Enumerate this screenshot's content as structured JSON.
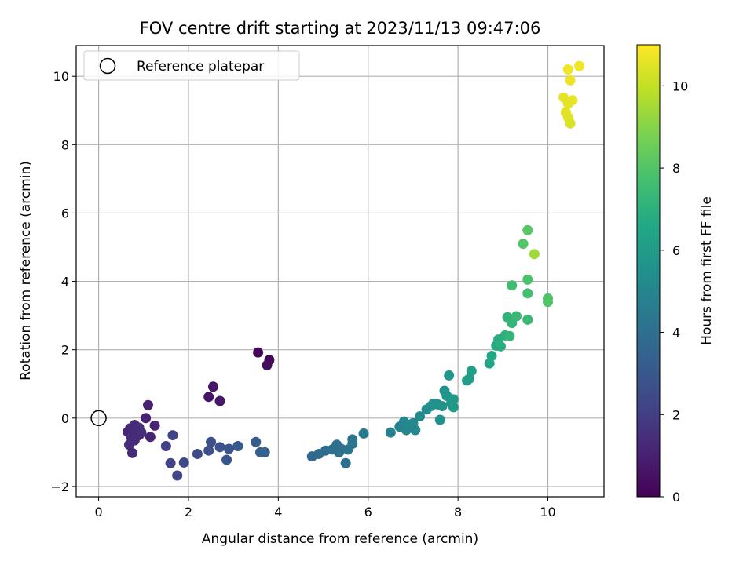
{
  "chart_data": {
    "type": "scatter",
    "title": "FOV centre drift starting at 2023/11/13 09:47:06",
    "xlabel": "Angular distance from reference (arcmin)",
    "ylabel": "Rotation from reference (arcmin)",
    "xlim": [
      -0.5,
      11.25
    ],
    "ylim": [
      -2.3,
      10.9
    ],
    "xticks": [
      0,
      2,
      4,
      6,
      8,
      10
    ],
    "yticks": [
      -2,
      0,
      2,
      4,
      6,
      8,
      10
    ],
    "grid": true,
    "legend": {
      "position": "top-left",
      "entries": [
        "Reference platepar"
      ]
    },
    "reference_point": {
      "x": 0,
      "y": 0,
      "label": "Reference platepar"
    },
    "colorbar": {
      "label": "Hours from first FF file",
      "range": [
        0,
        11
      ],
      "ticks": [
        0,
        2,
        4,
        6,
        8,
        10
      ],
      "colormap": "viridis"
    },
    "points": [
      [
        3.55,
        1.92,
        0.15
      ],
      [
        3.75,
        1.55,
        0.3
      ],
      [
        3.8,
        1.7,
        0.25
      ],
      [
        2.45,
        0.62,
        0.6
      ],
      [
        2.55,
        0.92,
        0.65
      ],
      [
        2.7,
        0.5,
        0.7
      ],
      [
        1.1,
        0.38,
        1.0
      ],
      [
        1.05,
        0.0,
        1.05
      ],
      [
        1.25,
        -0.22,
        1.1
      ],
      [
        1.15,
        -0.55,
        1.1
      ],
      [
        0.65,
        -0.4,
        1.2
      ],
      [
        0.7,
        -0.3,
        1.25
      ],
      [
        0.75,
        -0.45,
        1.25
      ],
      [
        0.8,
        -0.2,
        1.3
      ],
      [
        0.85,
        -0.35,
        1.3
      ],
      [
        0.9,
        -0.5,
        1.3
      ],
      [
        0.72,
        -0.55,
        1.35
      ],
      [
        0.8,
        -0.65,
        1.35
      ],
      [
        0.68,
        -0.78,
        1.35
      ],
      [
        0.75,
        -1.02,
        1.4
      ],
      [
        0.9,
        -0.28,
        1.4
      ],
      [
        0.95,
        -0.42,
        1.45
      ],
      [
        1.5,
        -0.82,
        2.1
      ],
      [
        1.6,
        -1.32,
        2.2
      ],
      [
        1.65,
        -0.5,
        2.2
      ],
      [
        1.75,
        -1.68,
        2.3
      ],
      [
        1.9,
        -1.3,
        2.4
      ],
      [
        2.2,
        -1.05,
        2.5
      ],
      [
        2.45,
        -0.95,
        2.6
      ],
      [
        2.5,
        -0.7,
        2.7
      ],
      [
        2.7,
        -0.85,
        2.8
      ],
      [
        2.85,
        -1.22,
        2.9
      ],
      [
        2.9,
        -0.9,
        2.9
      ],
      [
        3.1,
        -0.82,
        3.0
      ],
      [
        3.5,
        -0.7,
        3.2
      ],
      [
        3.6,
        -1.0,
        3.3
      ],
      [
        3.7,
        -1.0,
        3.4
      ],
      [
        4.75,
        -1.12,
        3.7
      ],
      [
        4.9,
        -1.05,
        3.8
      ],
      [
        5.05,
        -0.95,
        3.9
      ],
      [
        5.2,
        -0.92,
        4.0
      ],
      [
        5.3,
        -0.78,
        4.0
      ],
      [
        5.35,
        -1.0,
        4.05
      ],
      [
        5.4,
        -0.9,
        4.1
      ],
      [
        5.5,
        -1.32,
        4.1
      ],
      [
        5.55,
        -0.92,
        4.2
      ],
      [
        5.65,
        -0.75,
        4.3
      ],
      [
        5.65,
        -0.62,
        4.3
      ],
      [
        5.9,
        -0.45,
        4.5
      ],
      [
        6.5,
        -0.42,
        4.8
      ],
      [
        6.7,
        -0.25,
        4.9
      ],
      [
        6.8,
        -0.1,
        5.0
      ],
      [
        6.85,
        -0.35,
        5.0
      ],
      [
        6.9,
        -0.2,
        5.1
      ],
      [
        7.0,
        -0.15,
        5.1
      ],
      [
        7.05,
        -0.35,
        5.1
      ],
      [
        7.15,
        0.05,
        5.2
      ],
      [
        7.3,
        0.25,
        5.3
      ],
      [
        7.4,
        0.35,
        5.4
      ],
      [
        7.45,
        0.42,
        5.5
      ],
      [
        7.55,
        0.4,
        5.5
      ],
      [
        7.6,
        -0.05,
        5.5
      ],
      [
        7.65,
        0.35,
        5.6
      ],
      [
        7.7,
        0.8,
        5.7
      ],
      [
        7.75,
        0.65,
        5.7
      ],
      [
        7.8,
        1.25,
        5.8
      ],
      [
        7.85,
        0.45,
        5.8
      ],
      [
        7.9,
        0.32,
        5.9
      ],
      [
        7.9,
        0.55,
        5.9
      ],
      [
        8.2,
        1.1,
        6.1
      ],
      [
        8.25,
        1.15,
        6.1
      ],
      [
        8.3,
        1.38,
        6.2
      ],
      [
        8.7,
        1.6,
        6.5
      ],
      [
        8.75,
        1.82,
        6.6
      ],
      [
        8.85,
        2.12,
        6.7
      ],
      [
        8.9,
        2.3,
        6.8
      ],
      [
        8.95,
        2.1,
        6.85
      ],
      [
        9.05,
        2.42,
        7.0
      ],
      [
        9.1,
        2.95,
        7.1
      ],
      [
        9.15,
        2.4,
        7.2
      ],
      [
        9.2,
        2.78,
        7.2
      ],
      [
        9.3,
        2.98,
        7.3
      ],
      [
        9.55,
        2.88,
        7.4
      ],
      [
        9.2,
        3.88,
        7.6
      ],
      [
        9.55,
        3.65,
        7.7
      ],
      [
        9.55,
        4.05,
        7.8
      ],
      [
        9.45,
        5.1,
        8.0
      ],
      [
        9.55,
        5.5,
        8.1
      ],
      [
        10.0,
        3.5,
        7.9
      ],
      [
        10.0,
        3.4,
        7.95
      ],
      [
        9.7,
        4.8,
        9.4
      ],
      [
        10.45,
        10.2,
        10.8
      ],
      [
        10.7,
        10.3,
        10.8
      ],
      [
        10.5,
        9.88,
        10.7
      ],
      [
        10.35,
        9.38,
        10.6
      ],
      [
        10.55,
        9.3,
        10.6
      ],
      [
        10.45,
        9.2,
        10.55
      ],
      [
        10.4,
        8.95,
        10.5
      ],
      [
        10.45,
        8.8,
        10.5
      ],
      [
        10.5,
        8.62,
        10.4
      ]
    ]
  }
}
